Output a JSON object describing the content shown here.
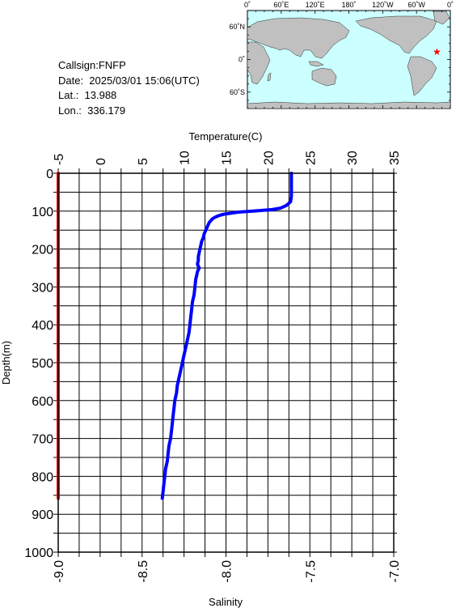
{
  "info": {
    "callsign": "Callsign:FNFP",
    "date": "Date:  2025/03/01 15:06(UTC)",
    "lat": "Lat.:  13.988",
    "lon": "Lon.:  336.179"
  },
  "map": {
    "lon_labels": [
      "0˚",
      "60˚E",
      "120˚E",
      "180˚",
      "120˚W",
      "60˚W",
      "0˚"
    ],
    "lat_labels": [
      "60˚N",
      "0˚",
      "60˚S"
    ],
    "ocean_color": "#ccffff",
    "land_color": "#c0c0c0",
    "marker_color": "#ff0000",
    "station_lon": 336.179,
    "station_lat": 13.988
  },
  "chart_data": {
    "type": "line",
    "title": "",
    "xlabel_top": "Temperature(C)",
    "xlabel_bottom": "Salinity",
    "ylabel": "Depth(m)",
    "temperature_range": [
      -5,
      35
    ],
    "temperature_ticks": [
      "-5",
      "0",
      "5",
      "10",
      "15",
      "20",
      "25",
      "30",
      "35"
    ],
    "salinity_range": [
      -9.0,
      -7.0
    ],
    "salinity_ticks": [
      "-9.0",
      "-8.5",
      "-8.0",
      "-7.5",
      "-7.0"
    ],
    "depth_range": [
      0,
      1000
    ],
    "depth_ticks": [
      "0",
      "100",
      "200",
      "300",
      "400",
      "500",
      "600",
      "700",
      "800",
      "900",
      "1000"
    ],
    "grid": true,
    "series": [
      {
        "color": "#0000ff",
        "axis": "temperature",
        "depth": [
          0,
          20,
          40,
          60,
          75,
          85,
          92,
          96,
          98,
          100,
          102,
          104,
          106,
          108,
          110,
          113,
          116,
          120,
          125,
          130,
          135,
          140,
          150,
          160,
          170,
          180,
          190,
          200,
          210,
          220,
          230,
          240,
          250,
          260,
          270,
          280,
          300,
          320,
          340,
          360,
          380,
          400,
          420,
          440,
          460,
          480,
          500,
          520,
          540,
          560,
          580,
          600,
          620,
          640,
          660,
          680,
          700,
          720,
          740,
          760,
          780,
          800,
          820,
          840,
          858
        ],
        "values": [
          22.8,
          22.8,
          22.8,
          22.8,
          22.7,
          22.2,
          21.5,
          20.5,
          19.3,
          18.2,
          16.8,
          16.0,
          15.4,
          14.8,
          14.4,
          14.0,
          13.7,
          13.4,
          13.2,
          13.0,
          12.9,
          12.8,
          12.6,
          12.4,
          12.3,
          12.1,
          12.0,
          11.9,
          11.8,
          11.7,
          11.7,
          11.6,
          11.8,
          11.6,
          11.5,
          11.4,
          11.3,
          11.2,
          11.0,
          10.9,
          10.8,
          10.7,
          10.6,
          10.4,
          10.2,
          10.0,
          9.8,
          9.6,
          9.4,
          9.2,
          9.1,
          8.9,
          8.8,
          8.7,
          8.6,
          8.5,
          8.4,
          8.2,
          8.1,
          8.0,
          7.8,
          7.7,
          7.6,
          7.5,
          7.4
        ]
      },
      {
        "color": "#ff0000",
        "axis": "salinity",
        "depth": [
          0,
          858
        ],
        "values": [
          -9.0,
          -9.0
        ]
      }
    ]
  }
}
